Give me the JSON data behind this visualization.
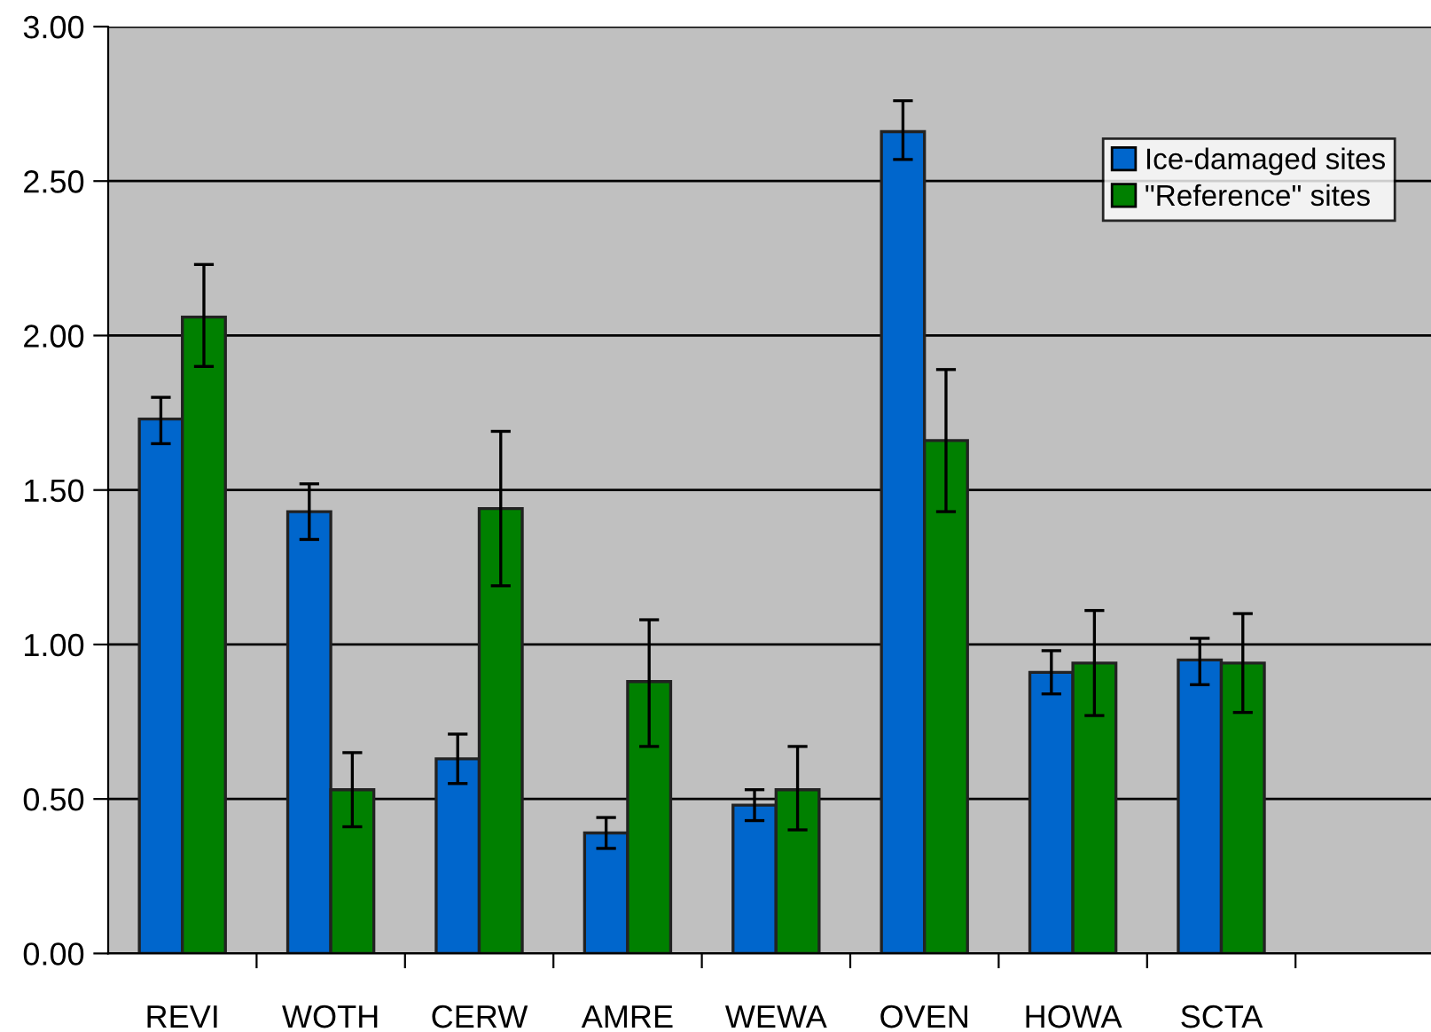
{
  "chart_data": {
    "type": "bar",
    "categories": [
      "REVI",
      "WOTH",
      "CERW",
      "AMRE",
      "WEWA",
      "OVEN",
      "HOWA",
      "SCTA",
      null
    ],
    "series": [
      {
        "name": "Ice-damaged sites",
        "color": "#0066cc",
        "values": [
          1.73,
          1.43,
          0.63,
          0.39,
          0.48,
          2.66,
          0.91,
          0.95,
          null
        ],
        "errors": [
          [
            1.65,
            1.8
          ],
          [
            1.34,
            1.52
          ],
          [
            0.55,
            0.71
          ],
          [
            0.34,
            0.44
          ],
          [
            0.43,
            0.53
          ],
          [
            2.57,
            2.76
          ],
          [
            0.84,
            0.98
          ],
          [
            0.87,
            1.02
          ],
          null
        ]
      },
      {
        "name": "\"Reference\" sites",
        "color": "#008000",
        "values": [
          2.06,
          0.53,
          1.44,
          0.88,
          0.53,
          1.66,
          0.94,
          0.94,
          null
        ],
        "errors": [
          [
            1.9,
            2.23
          ],
          [
            0.41,
            0.65
          ],
          [
            1.19,
            1.69
          ],
          [
            0.67,
            1.08
          ],
          [
            0.4,
            0.67
          ],
          [
            1.43,
            1.89
          ],
          [
            0.77,
            1.11
          ],
          [
            0.78,
            1.1
          ],
          null
        ]
      }
    ],
    "ylim": [
      0,
      3
    ],
    "yticks": [
      {
        "value": 0,
        "label": "0.00"
      },
      {
        "value": 0.5,
        "label": "0.50"
      },
      {
        "value": 1,
        "label": "1.00"
      },
      {
        "value": 1.5,
        "label": "1.50"
      },
      {
        "value": 2,
        "label": "2.00"
      },
      {
        "value": 2.5,
        "label": "2.50"
      },
      {
        "value": 3,
        "label": "3.00"
      }
    ],
    "grid": "y",
    "legend": "top right"
  }
}
